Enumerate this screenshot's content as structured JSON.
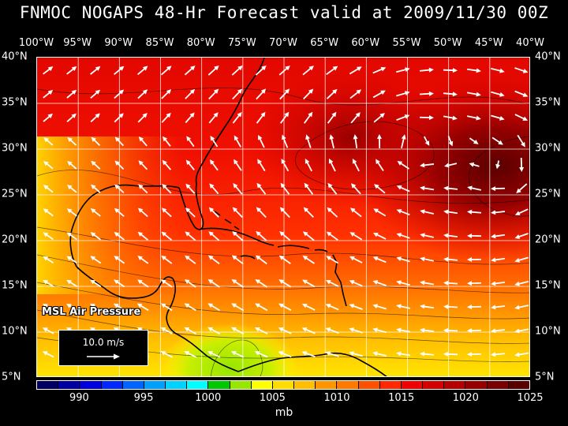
{
  "title": "FNMOC NOGAPS 48-Hr Forecast valid at 2009/11/30 00Z",
  "lon_labels": [
    "100°W",
    "95°W",
    "90°W",
    "85°W",
    "80°W",
    "75°W",
    "70°W",
    "65°W",
    "60°W",
    "55°W",
    "50°W",
    "45°W",
    "40°W"
  ],
  "lat_labels": [
    "40°N",
    "35°N",
    "30°N",
    "25°N",
    "20°N",
    "15°N",
    "10°N",
    "5°N"
  ],
  "field_label": "MSL Air Pressure",
  "reference_vector": "10.0 m/s",
  "colorbar": {
    "ticks": [
      "990",
      "995",
      "1000",
      "1005",
      "1010",
      "1015",
      "1020",
      "1025"
    ],
    "unit": "mb",
    "colors": [
      "#000064",
      "#0000a0",
      "#0000dc",
      "#0028ff",
      "#0064ff",
      "#00a0ff",
      "#00d2ff",
      "#00ffff",
      "#00c800",
      "#96e600",
      "#ffff00",
      "#ffdc00",
      "#ffbe00",
      "#ff9600",
      "#ff7800",
      "#ff5000",
      "#ff2800",
      "#f00000",
      "#d20000",
      "#b40000",
      "#960000",
      "#780000",
      "#5a0000"
    ]
  },
  "colors": {
    "background": "#000000",
    "text": "#ffffff",
    "land_outline": "#000000",
    "wind_vector": "#ffffff"
  },
  "map_extent": {
    "lon_west": -100,
    "lon_east": -40,
    "lat_south": 5,
    "lat_north": 40
  }
}
